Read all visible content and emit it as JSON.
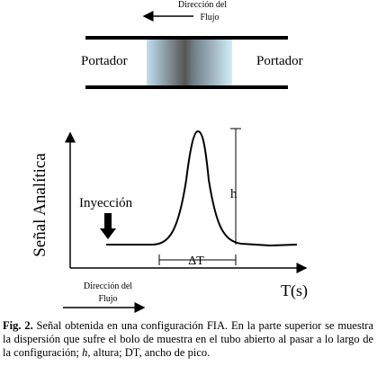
{
  "diagram": {
    "top_flow_label": [
      "Dirección del",
      "Flujo"
    ],
    "left_label": "Portador",
    "right_label": "Portador",
    "y_axis_label": "Señal Analítica",
    "injection_label": "Inyección",
    "height_label": "h",
    "width_label": "ΔT",
    "x_axis_label": "T(s)",
    "bottom_flow_label": [
      "Dirección del",
      "Flujo"
    ]
  },
  "caption": {
    "label": "Fig. 2.",
    "text": "Señal obtenida en una configuración FIA. En la parte superior se muestra la dispersión que sufre el bolo de muestra en el tubo abierto al pasar a lo largo de la configuración;",
    "italic": "h",
    "text_end": ", altura; DT, ancho de pico."
  }
}
